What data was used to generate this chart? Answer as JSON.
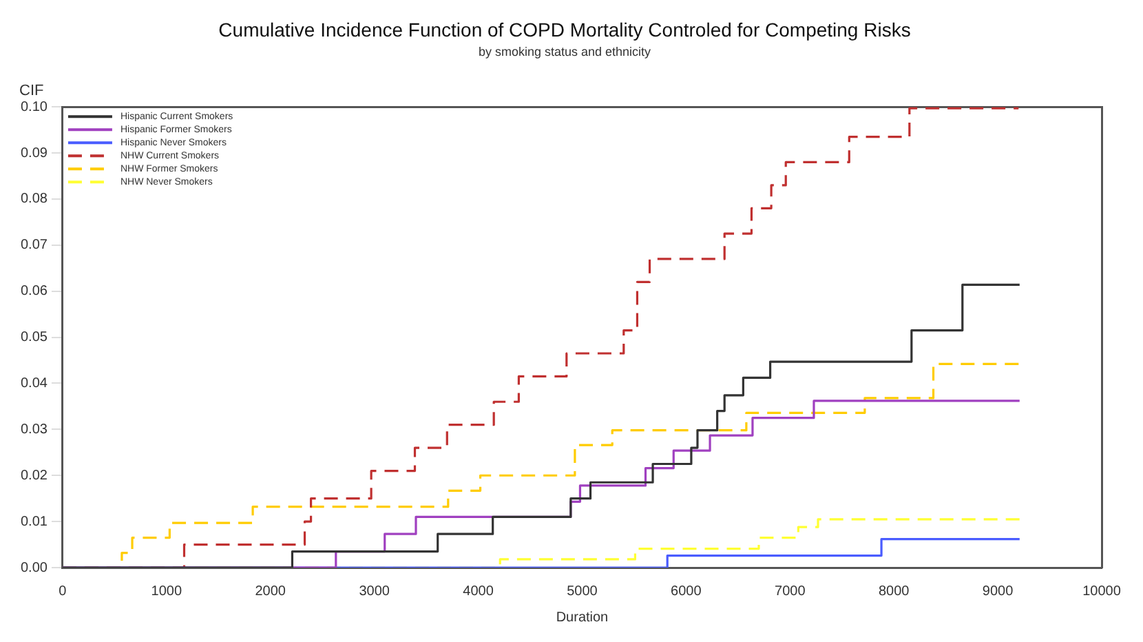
{
  "chart_data": {
    "type": "step",
    "title": "Cumulative Incidence Function of COPD Mortality Controled for Competing Risks",
    "subtitle": "by smoking status and ethnicity",
    "xlabel": "Duration",
    "ylabel": "CIF",
    "xlim": [
      0,
      10000
    ],
    "xticks": [
      0,
      1000,
      2000,
      3000,
      4000,
      5000,
      6000,
      7000,
      8000,
      9000,
      10000
    ],
    "ylim": [
      0,
      0.1
    ],
    "yticks": [
      {
        "value": 0,
        "label": "0.00"
      },
      {
        "value": 0.01,
        "label": "0.01"
      },
      {
        "value": 0.02,
        "label": "0.02"
      },
      {
        "value": 0.03,
        "label": "0.03"
      },
      {
        "value": 0.04,
        "label": "0.04"
      },
      {
        "value": 0.05,
        "label": "0.05"
      },
      {
        "value": 0.06,
        "label": "0.06"
      },
      {
        "value": 0.07,
        "label": "0.07"
      },
      {
        "value": 0.08,
        "label": "0.08"
      },
      {
        "value": 0.09,
        "label": "0.09"
      },
      {
        "value": 0.1,
        "label": "0.10"
      }
    ],
    "grid": false,
    "legend": "top left",
    "marker": "none",
    "series": [
      {
        "name": "Hispanic Current Smokers",
        "color": "#333333",
        "line_style": "solid",
        "x": [
          0,
          2210,
          3610,
          4140,
          4890,
          5080,
          5680,
          6050,
          6110,
          6300,
          6370,
          6550,
          6810,
          8170,
          8660,
          9210
        ],
        "values": [
          0,
          0.0035,
          0.0073,
          0.011,
          0.015,
          0.0185,
          0.0225,
          0.026,
          0.0298,
          0.034,
          0.0374,
          0.0412,
          0.0447,
          0.0515,
          0.0614,
          0.0614
        ]
      },
      {
        "name": "Hispanic Former Smokers",
        "color": "#a040c0",
        "line_style": "solid",
        "x": [
          0,
          2630,
          3100,
          3400,
          4890,
          4980,
          5610,
          5880,
          6230,
          6640,
          7230,
          9210
        ],
        "values": [
          0,
          0.0035,
          0.0073,
          0.011,
          0.0143,
          0.0178,
          0.0216,
          0.0254,
          0.0287,
          0.0325,
          0.0362,
          0.0362
        ]
      },
      {
        "name": "Hispanic Never Smokers",
        "color": "#4a5cff",
        "line_style": "solid",
        "x": [
          0,
          5820,
          7880,
          9210
        ],
        "values": [
          0,
          0.0026,
          0.0062,
          0.0062
        ]
      },
      {
        "name": "NHW Current Smokers",
        "color": "#c03030",
        "line_style": "dashed",
        "x": [
          0,
          1170,
          2330,
          2390,
          2970,
          3390,
          3700,
          4150,
          4390,
          4850,
          5400,
          5530,
          5650,
          6370,
          6630,
          6820,
          6960,
          7570,
          8150,
          9200
        ],
        "values": [
          0,
          0.005,
          0.01,
          0.015,
          0.021,
          0.026,
          0.031,
          0.036,
          0.0415,
          0.0465,
          0.0515,
          0.062,
          0.067,
          0.0725,
          0.078,
          0.083,
          0.088,
          0.0935,
          0.0997,
          0.0997
        ]
      },
      {
        "name": "NHW Former Smokers",
        "color": "#ffcc00",
        "line_style": "dashed",
        "x": [
          0,
          570,
          670,
          1030,
          1830,
          3710,
          4020,
          4930,
          5290,
          6580,
          7720,
          8380,
          9210
        ],
        "values": [
          0,
          0.0032,
          0.0065,
          0.0097,
          0.0132,
          0.0167,
          0.02,
          0.0266,
          0.0298,
          0.0336,
          0.0368,
          0.0442,
          0.0442
        ]
      },
      {
        "name": "NHW Never Smokers",
        "color": "#ffff33",
        "line_style": "dashed",
        "x": [
          0,
          4210,
          5510,
          6700,
          7080,
          7270,
          9210
        ],
        "values": [
          0,
          0.0018,
          0.0041,
          0.0065,
          0.0088,
          0.0105,
          0.0105
        ]
      }
    ]
  }
}
